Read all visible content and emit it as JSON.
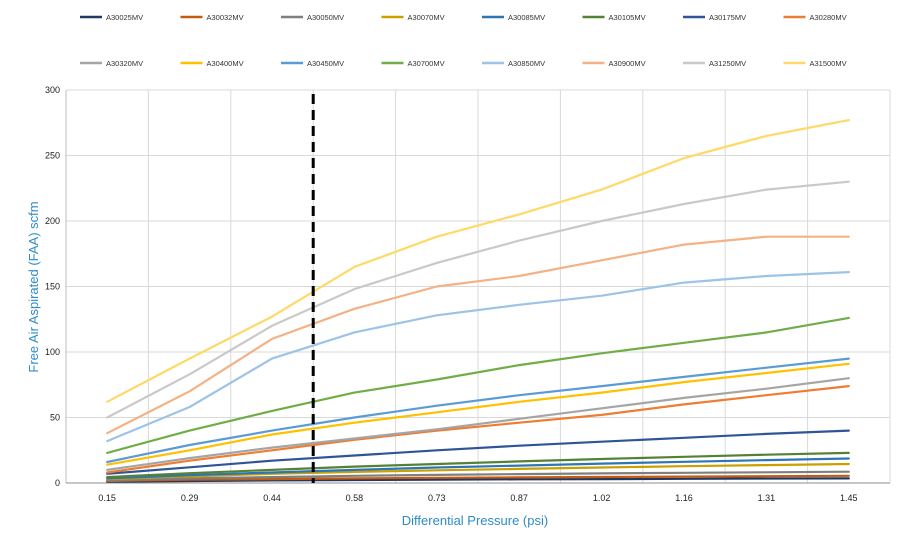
{
  "chart_data": {
    "type": "line",
    "title": "",
    "xlabel": "Differential Pressure (psi)",
    "ylabel": "Free Air Aspirated (FAA) scfm",
    "categories": [
      "0.15",
      "0.29",
      "0.44",
      "0.58",
      "0.73",
      "0.87",
      "1.02",
      "1.16",
      "1.31",
      "1.45"
    ],
    "ylim": [
      0,
      300
    ],
    "yticks": [
      0,
      50,
      100,
      150,
      200,
      250,
      300
    ],
    "grid": true,
    "legend_position": "top",
    "reference_line_x": 0.5,
    "series": [
      {
        "name": "A30025MV",
        "color": "#203864",
        "values": [
          1,
          1.5,
          2,
          2.3,
          2.6,
          2.8,
          3,
          3.2,
          3.4,
          3.5
        ]
      },
      {
        "name": "A30032MV",
        "color": "#c55a11",
        "values": [
          1.5,
          2.5,
          3,
          3.5,
          4,
          4.3,
          4.6,
          4.9,
          5.2,
          5.5
        ]
      },
      {
        "name": "A30050MV",
        "color": "#7f7f7f",
        "values": [
          2,
          3.5,
          4.5,
          5.5,
          6.2,
          6.8,
          7.3,
          7.8,
          8.2,
          8.6
        ]
      },
      {
        "name": "A30070MV",
        "color": "#c9a000",
        "values": [
          3,
          5,
          7,
          8.5,
          9.7,
          10.8,
          11.8,
          12.8,
          13.7,
          14.5
        ]
      },
      {
        "name": "A30085MV",
        "color": "#2e75b6",
        "values": [
          3.5,
          6,
          8,
          10,
          11.8,
          13.3,
          14.8,
          16.2,
          17.5,
          18.7
        ]
      },
      {
        "name": "A30105MV",
        "color": "#548235",
        "values": [
          4.5,
          7.5,
          10,
          12.5,
          14.5,
          16.5,
          18.3,
          20,
          21.6,
          23
        ]
      },
      {
        "name": "A30175MV",
        "color": "#2f5597",
        "values": [
          7,
          12,
          17,
          21,
          25,
          28.5,
          31.5,
          34.5,
          37.5,
          40
        ]
      },
      {
        "name": "A30280MV",
        "color": "#ed7d31",
        "values": [
          8,
          17,
          25,
          33,
          40,
          46,
          52,
          60,
          67,
          74
        ]
      },
      {
        "name": "A30320MV",
        "color": "#a5a5a5",
        "values": [
          10,
          19,
          27,
          34,
          41,
          49,
          57,
          65,
          72,
          80
        ]
      },
      {
        "name": "A30400MV",
        "color": "#ffc000",
        "values": [
          14,
          25,
          37,
          46,
          54,
          62,
          69,
          77,
          84,
          91
        ]
      },
      {
        "name": "A30450MV",
        "color": "#5b9bd5",
        "values": [
          16,
          29,
          40,
          50,
          59,
          67,
          74,
          81,
          88,
          95
        ]
      },
      {
        "name": "A30700MV",
        "color": "#70ad47",
        "values": [
          23,
          40,
          55,
          69,
          79,
          90,
          99,
          107,
          115,
          126
        ]
      },
      {
        "name": "A30850MV",
        "color": "#9dc3e6",
        "values": [
          32,
          58,
          95,
          115,
          128,
          136,
          143,
          153,
          158,
          161
        ]
      },
      {
        "name": "A30900MV",
        "color": "#f4b183",
        "values": [
          38,
          70,
          110,
          133,
          150,
          158,
          170,
          182,
          188,
          188
        ]
      },
      {
        "name": "A31250MV",
        "color": "#c9c9c9",
        "values": [
          50,
          83,
          120,
          148,
          168,
          185,
          200,
          213,
          224,
          230
        ]
      },
      {
        "name": "A31500MV",
        "color": "#ffd966",
        "values": [
          62,
          95,
          127,
          165,
          188,
          205,
          224,
          248,
          265,
          277
        ]
      }
    ]
  }
}
